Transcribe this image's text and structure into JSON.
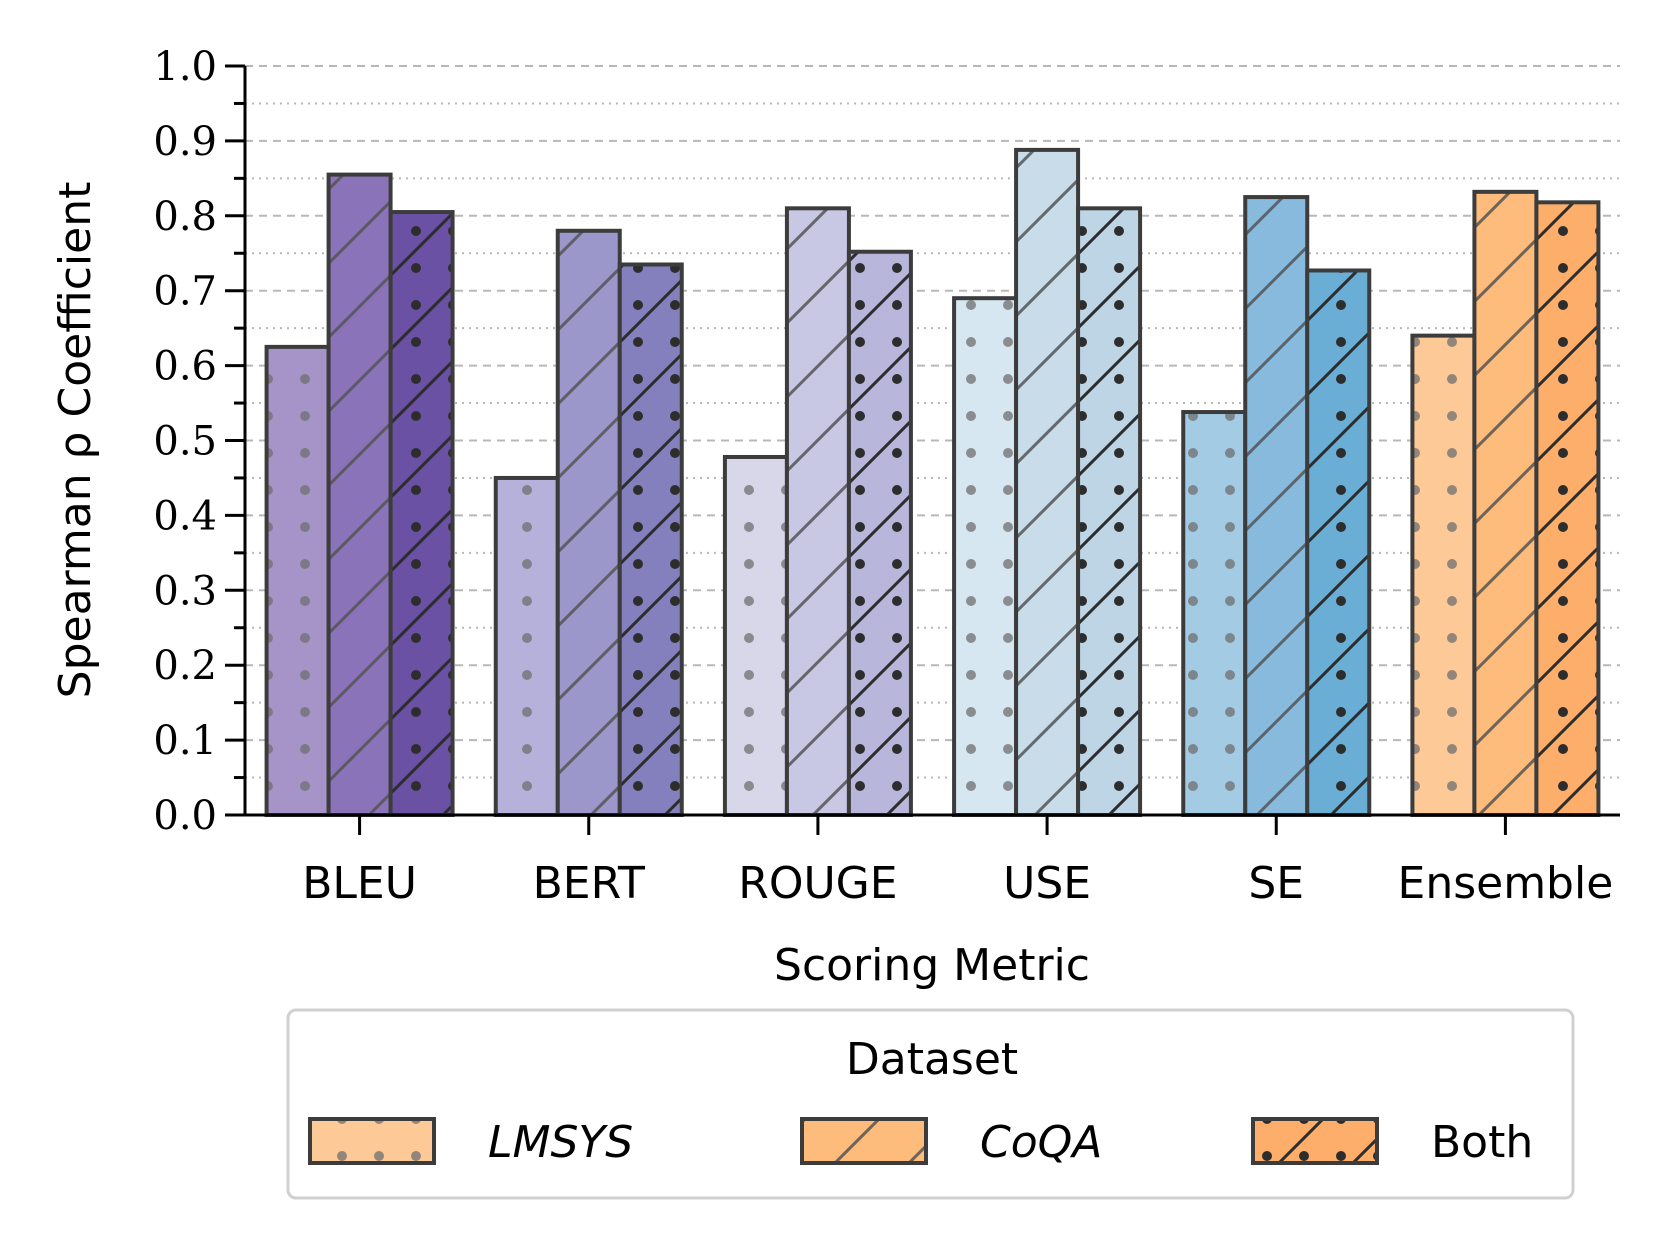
{
  "chart_data": {
    "type": "bar",
    "xlabel": "Scoring Metric",
    "ylabel": "Spearman ρ Coefficient",
    "ylim": [
      0.0,
      1.0
    ],
    "yticks": [
      "0.0",
      "0.1",
      "0.2",
      "0.3",
      "0.4",
      "0.5",
      "0.6",
      "0.7",
      "0.8",
      "0.9",
      "1.0"
    ],
    "grid": "horizontal dashed (major) and dotted (minor)",
    "categories": [
      "BLEU",
      "BERT",
      "ROUGE",
      "USE",
      "SE",
      "Ensemble"
    ],
    "series": [
      {
        "name": "LMSYS",
        "pattern": "dots",
        "values": [
          0.625,
          0.45,
          0.478,
          0.69,
          0.538,
          0.64
        ]
      },
      {
        "name": "CoQA",
        "pattern": "diagonal",
        "values": [
          0.855,
          0.78,
          0.81,
          0.888,
          0.825,
          0.832
        ]
      },
      {
        "name": "Both",
        "pattern": "diagonal-dots",
        "values": [
          0.805,
          0.735,
          0.752,
          0.81,
          0.727,
          0.818
        ]
      }
    ],
    "colors": [
      [
        "#a694c9",
        "#8a73b8",
        "#6a51a3"
      ],
      [
        "#b5b1da",
        "#9c97cb",
        "#8480bd"
      ],
      [
        "#d8d7ea",
        "#c9c8e4",
        "#b8b6da"
      ],
      [
        "#d6e7f1",
        "#c8dde9",
        "#bdd5e5"
      ],
      [
        "#a3cbe4",
        "#88bade",
        "#6aaed6"
      ],
      [
        "#fdc996",
        "#fdbb7c",
        "#fdae6b"
      ]
    ],
    "legend": {
      "title": "Dataset",
      "placement": "bottom-center",
      "entries": [
        "LMSYS",
        "CoQA",
        "Both"
      ],
      "swatch_colors": [
        "#fdc996",
        "#fdbb7c",
        "#fdae6b"
      ]
    }
  }
}
